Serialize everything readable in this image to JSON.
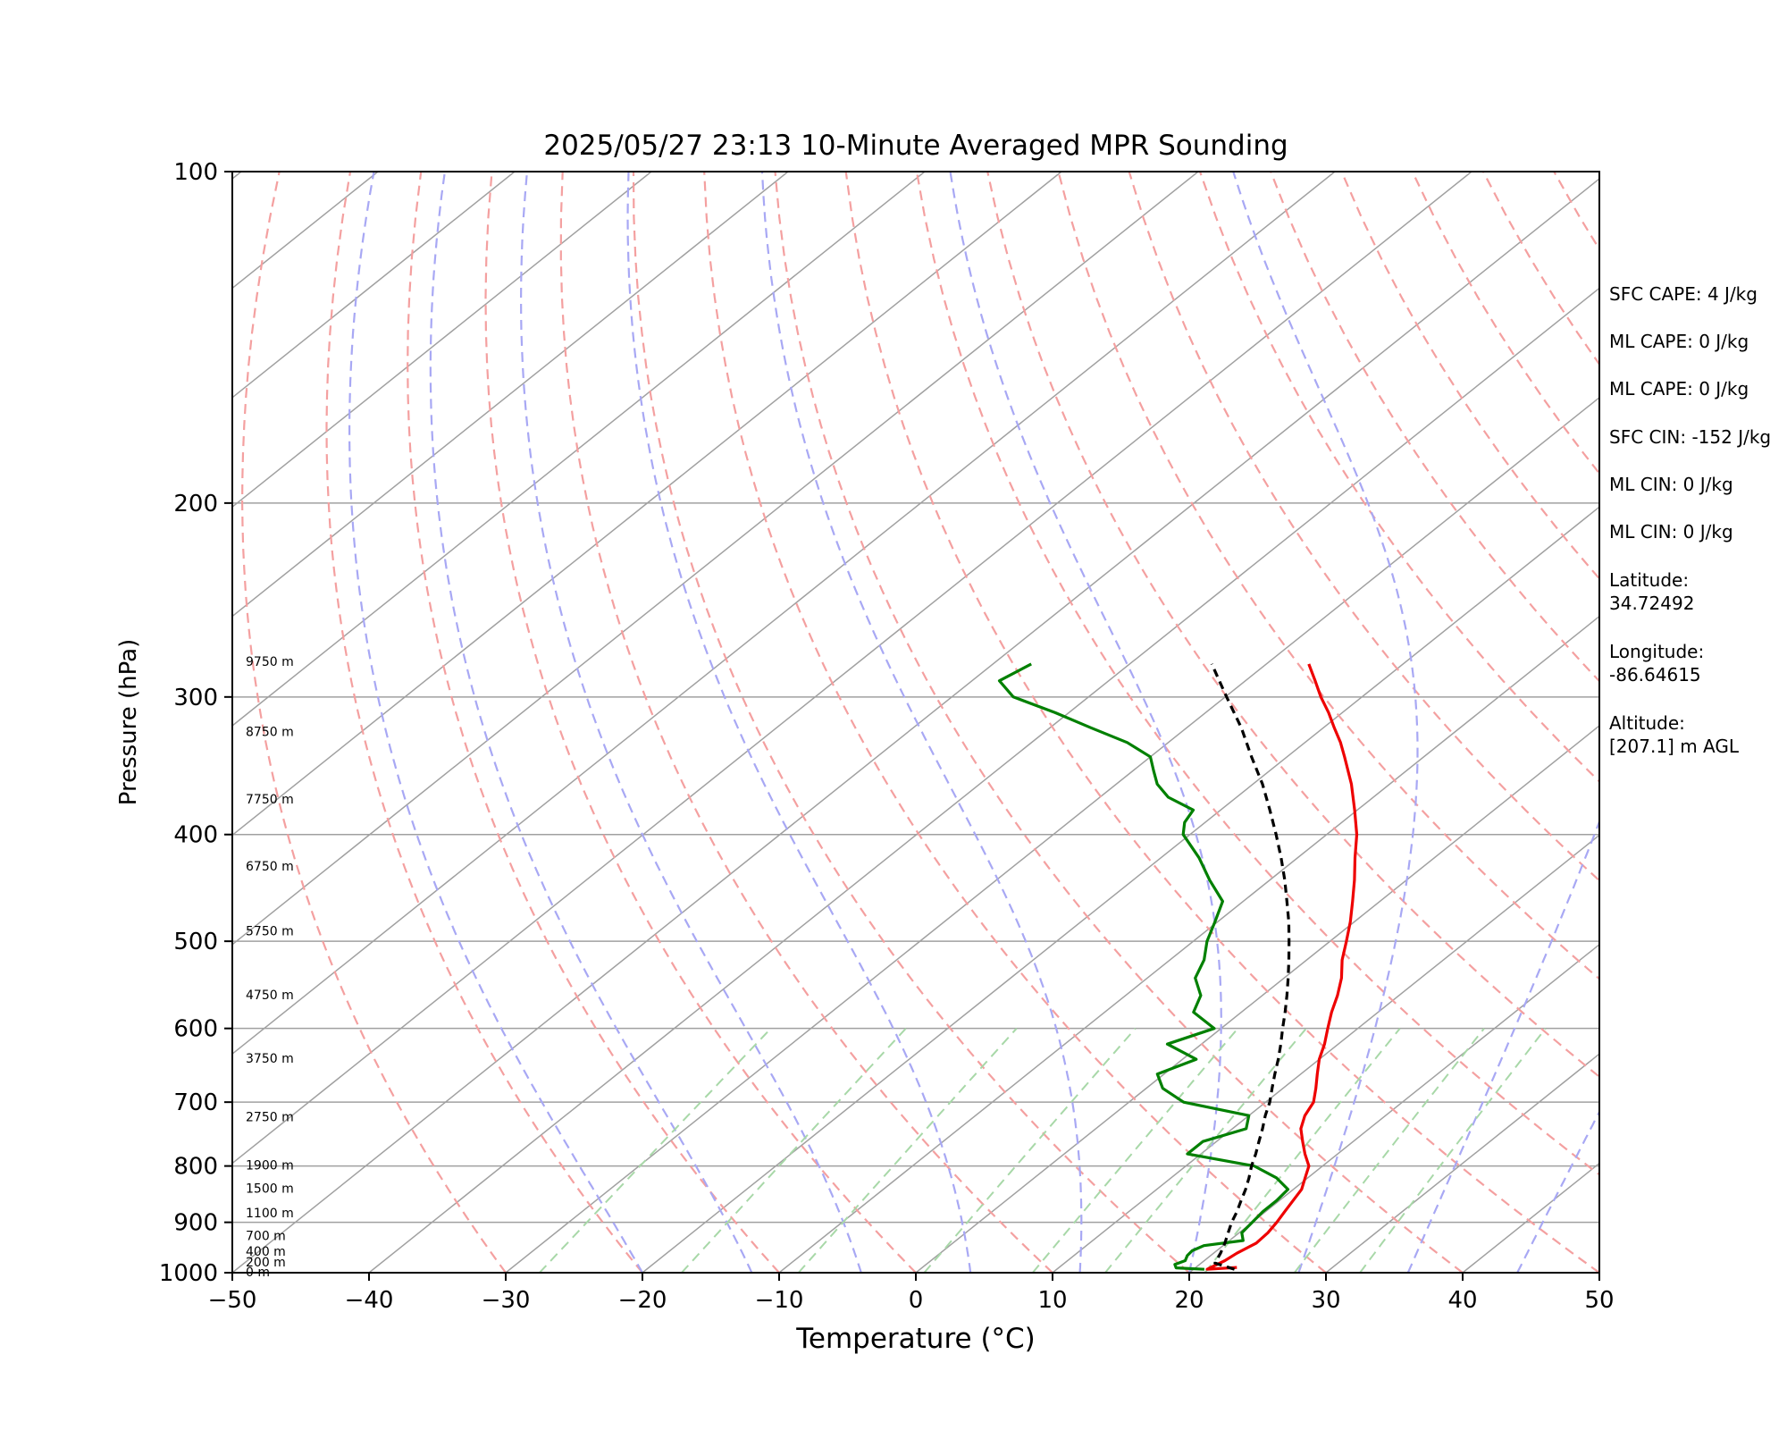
{
  "chart_data": {
    "type": "line",
    "subtype": "skew-t log-p",
    "title": "2025/05/27 23:13 10-Minute Averaged MPR Sounding",
    "xlabel": "Temperature (°C)",
    "ylabel": "Pressure (hPa)",
    "xlim": [
      -50,
      50
    ],
    "ylim": [
      1000,
      100
    ],
    "y_scale": "log",
    "x_ticks": [
      "−50",
      "−40",
      "−30",
      "−20",
      "−10",
      "0",
      "10",
      "20",
      "30",
      "40",
      "50"
    ],
    "y_ticks": [
      "100",
      "200",
      "300",
      "400",
      "500",
      "600",
      "700",
      "800",
      "900",
      "1000"
    ],
    "grid": "horizontal isobars at labeled pressures; skewed isotherms",
    "colors": {
      "temperature": "#ee0000",
      "dewpoint": "#008000",
      "parcel": "#000000",
      "dry_adiabats": "#f4a0a0",
      "moist_adiabats": "#a8a8f4",
      "mixing_ratio": "#a8d8a8",
      "isotherms": "#a0a0a0",
      "isobars": "#a0a0a0"
    },
    "height_labels": [
      {
        "label": "0 m",
        "pressure": 1000
      },
      {
        "label": "200 m",
        "pressure": 980
      },
      {
        "label": "400 m",
        "pressure": 958
      },
      {
        "label": "700 m",
        "pressure": 927
      },
      {
        "label": "1100 m",
        "pressure": 884
      },
      {
        "label": "1500 m",
        "pressure": 840
      },
      {
        "label": "1900 m",
        "pressure": 800
      },
      {
        "label": "2750 m",
        "pressure": 723
      },
      {
        "label": "3750 m",
        "pressure": 640
      },
      {
        "label": "4750 m",
        "pressure": 560
      },
      {
        "label": "5750 m",
        "pressure": 490
      },
      {
        "label": "6750 m",
        "pressure": 428
      },
      {
        "label": "7750 m",
        "pressure": 372
      },
      {
        "label": "8750 m",
        "pressure": 323
      },
      {
        "label": "9750 m",
        "pressure": 279
      }
    ],
    "series": [
      {
        "key": "temperature",
        "points": [
          [
            989,
            23.0
          ],
          [
            993,
            21.0
          ],
          [
            975,
            21.5
          ],
          [
            960,
            21.7
          ],
          [
            940,
            22.2
          ],
          [
            920,
            22.1
          ],
          [
            900,
            21.8
          ],
          [
            880,
            21.4
          ],
          [
            860,
            21.0
          ],
          [
            840,
            20.6
          ],
          [
            820,
            19.8
          ],
          [
            800,
            19.0
          ],
          [
            780,
            17.6
          ],
          [
            760,
            16.3
          ],
          [
            740,
            15.0
          ],
          [
            720,
            14.1
          ],
          [
            700,
            13.5
          ],
          [
            680,
            12.4
          ],
          [
            660,
            11.2
          ],
          [
            640,
            10.0
          ],
          [
            620,
            9.0
          ],
          [
            600,
            7.8
          ],
          [
            580,
            6.6
          ],
          [
            560,
            5.5
          ],
          [
            540,
            4.2
          ],
          [
            520,
            2.6
          ],
          [
            500,
            1.2
          ],
          [
            480,
            -0.3
          ],
          [
            460,
            -2.0
          ],
          [
            440,
            -3.8
          ],
          [
            420,
            -5.8
          ],
          [
            400,
            -7.8
          ],
          [
            380,
            -10.2
          ],
          [
            360,
            -12.8
          ],
          [
            340,
            -15.8
          ],
          [
            330,
            -17.4
          ],
          [
            320,
            -19.2
          ],
          [
            310,
            -21.0
          ],
          [
            300,
            -23.0
          ],
          [
            290,
            -24.9
          ],
          [
            280,
            -26.9
          ]
        ]
      },
      {
        "key": "dewpoint",
        "points": [
          [
            993,
            20.8
          ],
          [
            990,
            18.6
          ],
          [
            983,
            18.2
          ],
          [
            975,
            18.6
          ],
          [
            965,
            18.3
          ],
          [
            955,
            18.2
          ],
          [
            945,
            18.6
          ],
          [
            935,
            21.0
          ],
          [
            920,
            20.2
          ],
          [
            900,
            20.0
          ],
          [
            880,
            19.8
          ],
          [
            860,
            19.8
          ],
          [
            840,
            19.6
          ],
          [
            820,
            17.7
          ],
          [
            800,
            15.0
          ],
          [
            780,
            9.0
          ],
          [
            760,
            9.0
          ],
          [
            740,
            11.0
          ],
          [
            720,
            10.0
          ],
          [
            700,
            4.0
          ],
          [
            680,
            1.2
          ],
          [
            660,
            -0.5
          ],
          [
            640,
            1.0
          ],
          [
            620,
            -2.5
          ],
          [
            600,
            -0.5
          ],
          [
            580,
            -3.5
          ],
          [
            560,
            -4.5
          ],
          [
            540,
            -6.5
          ],
          [
            520,
            -7.5
          ],
          [
            500,
            -9.0
          ],
          [
            480,
            -10.2
          ],
          [
            460,
            -11.5
          ],
          [
            440,
            -14.4
          ],
          [
            420,
            -17.2
          ],
          [
            400,
            -20.5
          ],
          [
            390,
            -21.5
          ],
          [
            380,
            -22.0
          ],
          [
            370,
            -25.0
          ],
          [
            360,
            -27.0
          ],
          [
            350,
            -28.5
          ],
          [
            340,
            -30.0
          ],
          [
            330,
            -33.0
          ],
          [
            320,
            -37.0
          ],
          [
            310,
            -41.0
          ],
          [
            300,
            -45.5
          ],
          [
            290,
            -48.0
          ],
          [
            280,
            -47.2
          ]
        ]
      },
      {
        "key": "parcel",
        "points": [
          [
            993,
            23.0
          ],
          [
            980,
            21.0
          ],
          [
            960,
            20.5
          ],
          [
            940,
            19.9
          ],
          [
            920,
            19.2
          ],
          [
            900,
            18.5
          ],
          [
            880,
            17.9
          ],
          [
            860,
            17.2
          ],
          [
            840,
            16.5
          ],
          [
            820,
            15.7
          ],
          [
            800,
            14.8
          ],
          [
            780,
            14.0
          ],
          [
            760,
            13.1
          ],
          [
            740,
            12.2
          ],
          [
            720,
            11.2
          ],
          [
            700,
            10.3
          ],
          [
            680,
            9.2
          ],
          [
            660,
            8.1
          ],
          [
            640,
            7.0
          ],
          [
            620,
            5.8
          ],
          [
            600,
            4.5
          ],
          [
            580,
            3.2
          ],
          [
            560,
            1.8
          ],
          [
            540,
            0.3
          ],
          [
            520,
            -1.3
          ],
          [
            500,
            -3.0
          ],
          [
            480,
            -4.8
          ],
          [
            460,
            -6.8
          ],
          [
            440,
            -8.9
          ],
          [
            420,
            -11.2
          ],
          [
            400,
            -13.7
          ],
          [
            380,
            -16.4
          ],
          [
            360,
            -19.3
          ],
          [
            340,
            -22.6
          ],
          [
            320,
            -26.0
          ],
          [
            300,
            -29.9
          ],
          [
            280,
            -34.0
          ]
        ]
      }
    ]
  },
  "labels": {
    "sfc_cape": "SFC CAPE: 4 J/kg",
    "ml_cape_1": "ML CAPE: 0 J/kg",
    "ml_cape_2": "ML CAPE: 0 J/kg",
    "sfc_cin": "SFC CIN: -152 J/kg",
    "ml_cin_1": "ML CIN: 0 J/kg",
    "ml_cin_2": "ML CIN: 0 J/kg",
    "latitude_label": "Latitude:",
    "latitude_value": "34.72492",
    "longitude_label": "Longitude:",
    "longitude_value": "-86.64615",
    "altitude_label": "Altitude:",
    "altitude_value": "[207.1] m AGL"
  }
}
